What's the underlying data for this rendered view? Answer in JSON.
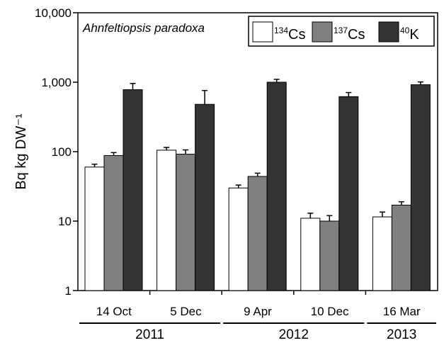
{
  "chart_data": {
    "type": "bar",
    "title": "Ahnfeltiopsis paradoxa",
    "ylabel": "Bq kg DW⁻¹",
    "xlabel": "",
    "yscale": "log",
    "ylim": [
      1,
      10000
    ],
    "yticks": [
      "1",
      "10",
      "100",
      "1,000",
      "10,000"
    ],
    "categories": [
      "14 Oct",
      "5 Dec",
      "9 Apr",
      "10 Dec",
      "16 Mar"
    ],
    "year_groups": [
      {
        "label": "2011",
        "categories": [
          "14 Oct",
          "5 Dec"
        ]
      },
      {
        "label": "2012",
        "categories": [
          "9 Apr",
          "10 Dec"
        ]
      },
      {
        "label": "2013",
        "categories": [
          "16 Mar"
        ]
      }
    ],
    "legend_position": "top-right",
    "series": [
      {
        "name": "134Cs",
        "mass": "134",
        "element": "Cs",
        "color": "#ffffff",
        "values": [
          60,
          105,
          30,
          11,
          11.5
        ],
        "errors": [
          6,
          10,
          3,
          2,
          2
        ]
      },
      {
        "name": "137Cs",
        "mass": "137",
        "element": "Cs",
        "color": "#808080",
        "values": [
          88,
          92,
          44,
          10,
          17
        ],
        "errors": [
          9,
          14,
          5,
          2,
          2
        ]
      },
      {
        "name": "40K",
        "mass": "40",
        "element": "K",
        "color": "#333333",
        "values": [
          780,
          480,
          1000,
          620,
          920
        ],
        "errors": [
          180,
          280,
          100,
          90,
          90
        ]
      }
    ]
  }
}
